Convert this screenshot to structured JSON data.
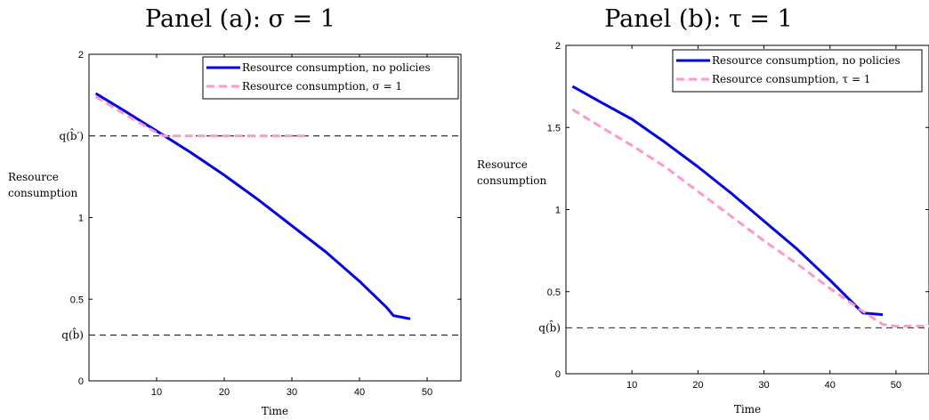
{
  "chart_data": [
    {
      "type": "line",
      "title": "Panel (a): σ = 1",
      "xlabel": "Time",
      "ylabel": "Resource consumption",
      "xlim": [
        0,
        55
      ],
      "ylim": [
        0,
        2
      ],
      "xticks": [
        "10",
        "20",
        "30",
        "40",
        "50"
      ],
      "yticks": [
        "0",
        "0.5",
        "1",
        "2"
      ],
      "series": [
        {
          "name": "Resource consumption, no policies",
          "color": "#0000ee",
          "style": "solid",
          "x": [
            1,
            5,
            10,
            15,
            20,
            25,
            30,
            35,
            40,
            44,
            45,
            47.5
          ],
          "y": [
            1.76,
            1.66,
            1.53,
            1.4,
            1.26,
            1.11,
            0.95,
            0.79,
            0.61,
            0.45,
            0.4,
            0.38
          ]
        },
        {
          "name": "Resource consumption, σ = 1",
          "color": "#ff99cc",
          "style": "dashed",
          "x": [
            1,
            5,
            10,
            11,
            15,
            20,
            25,
            30,
            32.5
          ],
          "y": [
            1.74,
            1.64,
            1.52,
            1.5,
            1.5,
            1.5,
            1.5,
            1.5,
            1.5
          ]
        }
      ],
      "hlines": [
        {
          "label": "q(b̂′)",
          "y": 1.5
        },
        {
          "label": "q(b̂)",
          "y": 0.28
        }
      ],
      "legend": "top-right"
    },
    {
      "type": "line",
      "title": "Panel (b): τ = 1",
      "xlabel": "Time",
      "ylabel": "Resource consumption",
      "xlim": [
        0,
        55
      ],
      "ylim": [
        0,
        2
      ],
      "xticks": [
        "10",
        "20",
        "30",
        "40",
        "50"
      ],
      "yticks": [
        "0",
        "0.5",
        "1",
        "1.5",
        "2"
      ],
      "series": [
        {
          "name": "Resource consumption, no policies",
          "color": "#0000ee",
          "style": "solid",
          "x": [
            1,
            5,
            10,
            15,
            20,
            25,
            30,
            35,
            40,
            44,
            45,
            48
          ],
          "y": [
            1.75,
            1.66,
            1.55,
            1.41,
            1.26,
            1.1,
            0.93,
            0.76,
            0.57,
            0.41,
            0.37,
            0.36
          ]
        },
        {
          "name": "Resource consumption, τ = 1",
          "color": "#ff99cc",
          "style": "dashed",
          "x": [
            1,
            5,
            10,
            15,
            20,
            25,
            30,
            35,
            40,
            45,
            48,
            50,
            55
          ],
          "y": [
            1.61,
            1.51,
            1.39,
            1.26,
            1.11,
            0.96,
            0.81,
            0.67,
            0.52,
            0.38,
            0.3,
            0.29,
            0.29
          ]
        }
      ],
      "hlines": [
        {
          "label": "q(b̂)",
          "y": 0.28
        }
      ],
      "legend": "top-right"
    }
  ]
}
